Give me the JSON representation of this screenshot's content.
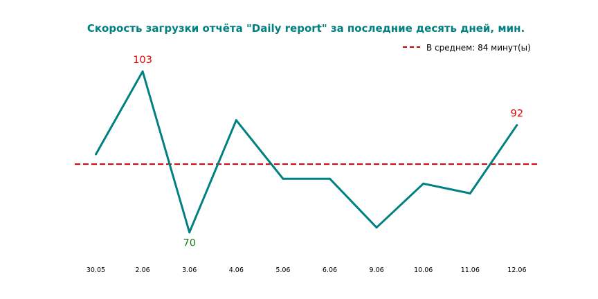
{
  "chart_data": {
    "type": "line",
    "title": "Скорость загрузки отчёта \"Daily report\" за последние десять дней, мин.",
    "categories": [
      "30.05",
      "2.06",
      "3.06",
      "4.06",
      "5.06",
      "6.06",
      "9.06",
      "10.06",
      "11.06",
      "12.06"
    ],
    "series": [
      {
        "values": [
          86,
          103,
          70,
          93,
          81,
          81,
          71,
          80,
          78,
          92
        ]
      }
    ],
    "average": {
      "value": 84,
      "label": "В среднем: 84 минут(ы)"
    },
    "annotations": [
      {
        "index": 1,
        "text": "103",
        "position": "above"
      },
      {
        "index": 2,
        "text": "70",
        "position": "below"
      },
      {
        "index": 9,
        "text": "92",
        "position": "above"
      }
    ],
    "ylim": [
      64,
      108
    ],
    "grid": false,
    "legend": "top-right",
    "colors": {
      "title": "#008080",
      "line": "#008080",
      "average": "#cc0000",
      "annotation_high": "#e00000",
      "annotation_low": "#1a7a1a"
    }
  }
}
